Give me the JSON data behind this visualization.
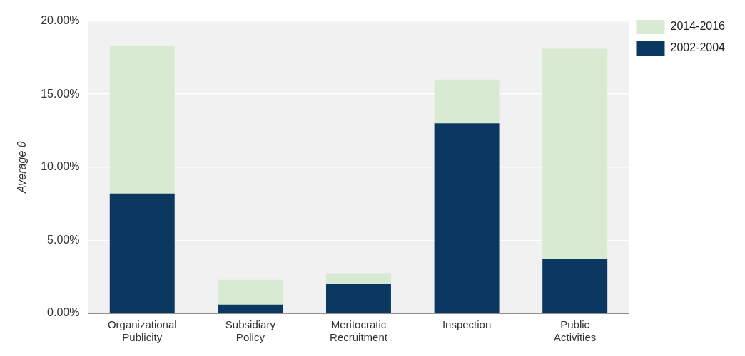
{
  "chart_data": {
    "type": "bar",
    "stacked": true,
    "categories": [
      "Organizational Publicity",
      "Subsidiary Policy",
      "Meritocratic Recruitment",
      "Inspection",
      "Public Activities"
    ],
    "series": [
      {
        "name": "2002-2004",
        "color": "#0b3861",
        "values": [
          8.2,
          0.6,
          2.0,
          13.0,
          3.7
        ]
      },
      {
        "name": "2014-2016",
        "color": "#d9ead3",
        "values": [
          10.1,
          1.7,
          0.7,
          3.0,
          14.4
        ]
      }
    ],
    "ylabel": "Average θ",
    "ylim": [
      0,
      20
    ],
    "yticks": [
      {
        "value": 0,
        "label": "0.00%"
      },
      {
        "value": 5,
        "label": "5.00%"
      },
      {
        "value": 10,
        "label": "10.00%"
      },
      {
        "value": 15,
        "label": "15.00%"
      },
      {
        "value": 20,
        "label": "20.00%"
      }
    ],
    "grid": "y",
    "legend": "top right"
  }
}
